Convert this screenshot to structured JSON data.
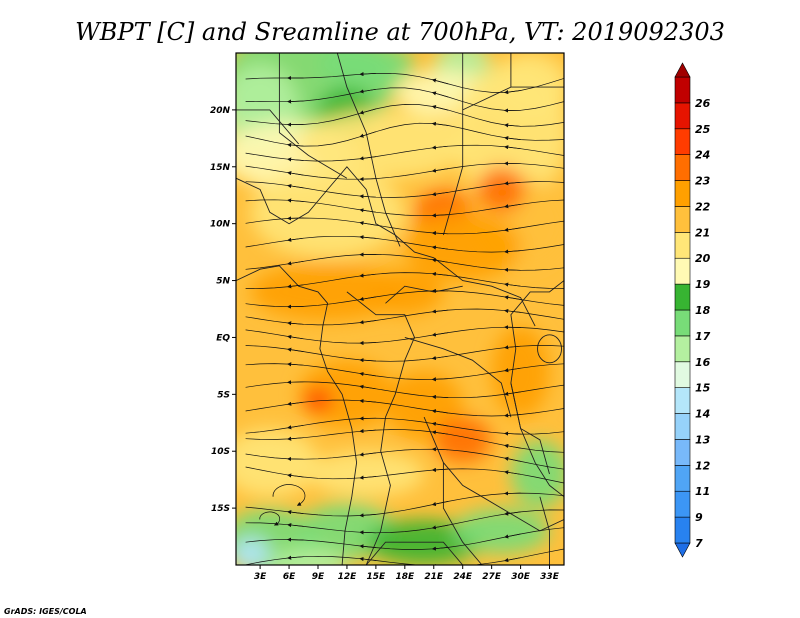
{
  "chart_data": {
    "type": "heatmap",
    "title": "WBPT [C] and Sreamline at 700hPa, VT: 2019092303",
    "variable": "Wet-bulb potential temperature (C) with 700hPa streamlines",
    "x_axis": {
      "ticks": [
        "3E",
        "6E",
        "9E",
        "12E",
        "15E",
        "18E",
        "21E",
        "24E",
        "27E",
        "30E",
        "33E"
      ],
      "values": [
        3,
        6,
        9,
        12,
        15,
        18,
        21,
        24,
        27,
        30,
        33
      ],
      "range": [
        0.5,
        34.5
      ]
    },
    "y_axis": {
      "ticks": [
        "20N",
        "15N",
        "10N",
        "5N",
        "EQ",
        "5S",
        "10S",
        "15S"
      ],
      "values": [
        20,
        15,
        10,
        5,
        0,
        -5,
        -10,
        -15
      ],
      "range": [
        -20,
        25
      ]
    },
    "colorbar": {
      "levels": [
        "7",
        "9",
        "11",
        "12",
        "13",
        "14",
        "15",
        "16",
        "17",
        "18",
        "19",
        "20",
        "21",
        "22",
        "23",
        "24",
        "25",
        "26"
      ],
      "colors": [
        "#1e6ee6",
        "#2882f0",
        "#3c96f5",
        "#50a5f5",
        "#78b9fa",
        "#96d2fa",
        "#b4e6fa",
        "#e1fae1",
        "#b4f0a0",
        "#78dc78",
        "#37b432",
        "#fffab4",
        "#ffe678",
        "#ffc03c",
        "#ffa000",
        "#ff6e00",
        "#ff3c00",
        "#e61400",
        "#c00000",
        "#a00000"
      ]
    },
    "field_summary": {
      "dominant_range": "19-22",
      "warm_maxima": "22-23 over 20E-30E, 3N-12N and 3S-10S",
      "cool_regions": "16-18 in north-west (north of 15N) and south (south of 12S)"
    },
    "streamlines": "predominantly easterly flow across the domain with cyclonic curvature in the south-west"
  },
  "credit": "GrADS: IGES/COLA"
}
